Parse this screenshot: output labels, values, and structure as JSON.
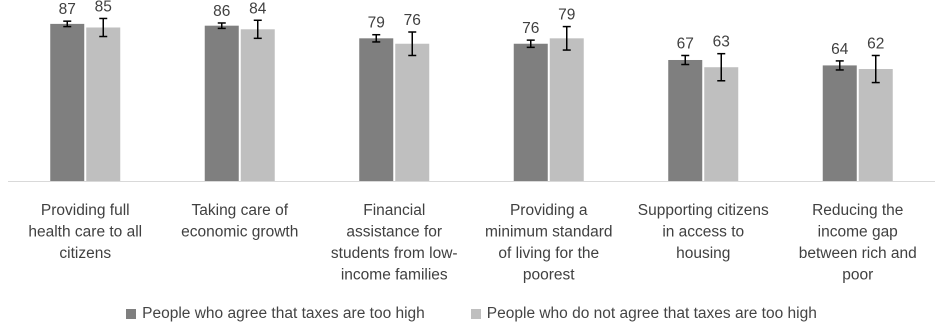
{
  "chart_data": {
    "type": "bar",
    "categories": [
      "Providing full health care to all citizens",
      "Taking care of economic growth",
      "Financial assistance for students from low-income families",
      "Providing a minimum standard of living for the poorest",
      "Supporting citizens in access to housing",
      "Reducing the income gap between rich and poor"
    ],
    "category_lines": [
      [
        "Providing full",
        "health care to all",
        "citizens"
      ],
      [
        "Taking care of",
        "economic growth"
      ],
      [
        "Financial",
        "assistance for",
        "students from low-",
        "income families"
      ],
      [
        "Providing a",
        "minimum standard",
        "of living for the",
        "poorest"
      ],
      [
        "Supporting citizens",
        "in access to",
        "housing"
      ],
      [
        "Reducing the",
        "income gap",
        "between rich and",
        "poor"
      ]
    ],
    "series": [
      {
        "name": "People who agree that taxes are too high",
        "color": "#7f7f7f",
        "values": [
          87,
          86,
          79,
          76,
          67,
          64
        ],
        "error": [
          1.5,
          1.5,
          2,
          2,
          2.5,
          2.5
        ]
      },
      {
        "name": "People who do not agree that taxes are too high",
        "color": "#bfbfbf",
        "values": [
          85,
          84,
          76,
          79,
          63,
          62
        ],
        "error": [
          5,
          5,
          6.5,
          6.5,
          7.5,
          7.5
        ]
      }
    ],
    "ylim": [
      0,
      100
    ],
    "grid": false,
    "legend_position": "bottom",
    "data_labels": true,
    "error_bars": true
  }
}
